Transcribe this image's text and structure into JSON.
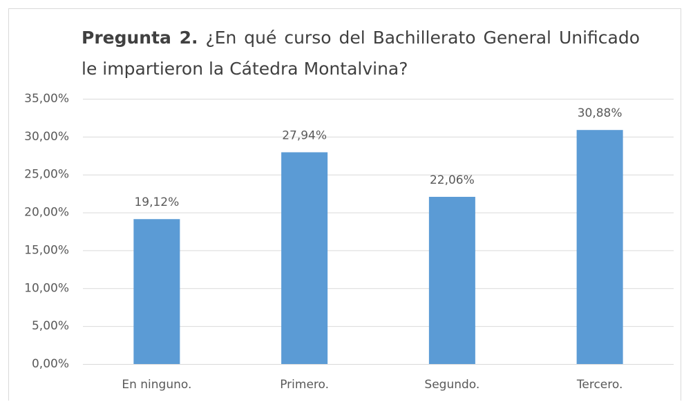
{
  "chart_data": {
    "type": "bar",
    "title_lead": "Pregunta 2.",
    "title": "¿En qué curso del Bachillerato General Unificado le impartieron la Cátedra Montalvina?",
    "categories": [
      "En ninguno.",
      "Primero.",
      "Segundo.",
      "Tercero."
    ],
    "values": [
      19.12,
      27.94,
      22.06,
      30.88
    ],
    "value_labels": [
      "19,12%",
      "27,94%",
      "22,06%",
      "30,88%"
    ],
    "color": "#5b9bd5",
    "ylim": [
      0,
      35
    ],
    "yticks": [
      {
        "value": 0,
        "label": "0,00%"
      },
      {
        "value": 5,
        "label": "5,00%"
      },
      {
        "value": 10,
        "label": "10,00%"
      },
      {
        "value": 15,
        "label": "15,00%"
      },
      {
        "value": 20,
        "label": "20,00%"
      },
      {
        "value": 25,
        "label": "25,00%"
      },
      {
        "value": 30,
        "label": "30,00%"
      },
      {
        "value": 35,
        "label": "35,00%"
      }
    ],
    "grid": true
  }
}
